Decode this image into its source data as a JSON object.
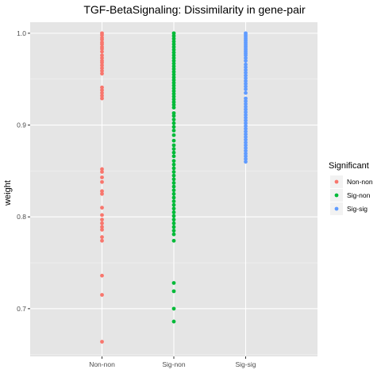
{
  "chart_data": {
    "type": "scatter",
    "title": "TGF-BetaSignaling: Dissimilarity in gene-pair",
    "xlabel": "",
    "ylabel": "weight",
    "categories": [
      "Non-non",
      "Sig-non",
      "Sig-sig"
    ],
    "ylim": [
      0.648,
      1.012
    ],
    "yticks": [
      0.7,
      0.8,
      0.9,
      1.0
    ],
    "ytick_labels": [
      "0.7",
      "0.8",
      "0.9",
      "1.0"
    ],
    "grid": true,
    "background": "#e5e5e5",
    "legend": {
      "title": "Significant",
      "position": "right",
      "entries": [
        "Non-non",
        "Sig-non",
        "Sig-sig"
      ]
    },
    "series": [
      {
        "name": "Non-non",
        "color": "#f8766d",
        "category": "Non-non",
        "values": [
          1.0,
          0.998,
          0.995,
          0.993,
          0.99,
          0.988,
          0.985,
          0.983,
          0.98,
          0.976,
          0.973,
          0.97,
          0.968,
          0.965,
          0.962,
          0.959,
          0.956,
          0.941,
          0.938,
          0.935,
          0.932,
          0.929,
          0.852,
          0.849,
          0.843,
          0.838,
          0.828,
          0.825,
          0.81,
          0.802,
          0.797,
          0.793,
          0.789,
          0.786,
          0.778,
          0.774,
          0.736,
          0.715,
          0.664
        ]
      },
      {
        "name": "Sig-non",
        "color": "#00ba38",
        "category": "Sig-non",
        "values": [
          1.0,
          0.997,
          0.994,
          0.991,
          0.988,
          0.985,
          0.982,
          0.979,
          0.976,
          0.973,
          0.97,
          0.967,
          0.964,
          0.961,
          0.958,
          0.955,
          0.952,
          0.949,
          0.946,
          0.943,
          0.94,
          0.937,
          0.934,
          0.931,
          0.928,
          0.925,
          0.922,
          0.919,
          0.913,
          0.91,
          0.906,
          0.902,
          0.898,
          0.894,
          0.889,
          0.883,
          0.878,
          0.874,
          0.87,
          0.866,
          0.861,
          0.857,
          0.853,
          0.849,
          0.845,
          0.841,
          0.837,
          0.833,
          0.829,
          0.825,
          0.821,
          0.817,
          0.813,
          0.809,
          0.805,
          0.801,
          0.797,
          0.793,
          0.789,
          0.785,
          0.781,
          0.774,
          0.728,
          0.719,
          0.7,
          0.686
        ]
      },
      {
        "name": "Sig-sig",
        "color": "#619cff",
        "category": "Sig-sig",
        "values": [
          1.0,
          0.998,
          0.996,
          0.994,
          0.992,
          0.99,
          0.988,
          0.986,
          0.984,
          0.982,
          0.98,
          0.978,
          0.976,
          0.973,
          0.97,
          0.966,
          0.963,
          0.96,
          0.957,
          0.954,
          0.951,
          0.948,
          0.945,
          0.942,
          0.939,
          0.935,
          0.929,
          0.926,
          0.923,
          0.92,
          0.917,
          0.914,
          0.911,
          0.908,
          0.905,
          0.902,
          0.899,
          0.896,
          0.893,
          0.89,
          0.887,
          0.884,
          0.881,
          0.878,
          0.875,
          0.872,
          0.869,
          0.866,
          0.863,
          0.86
        ]
      }
    ]
  }
}
